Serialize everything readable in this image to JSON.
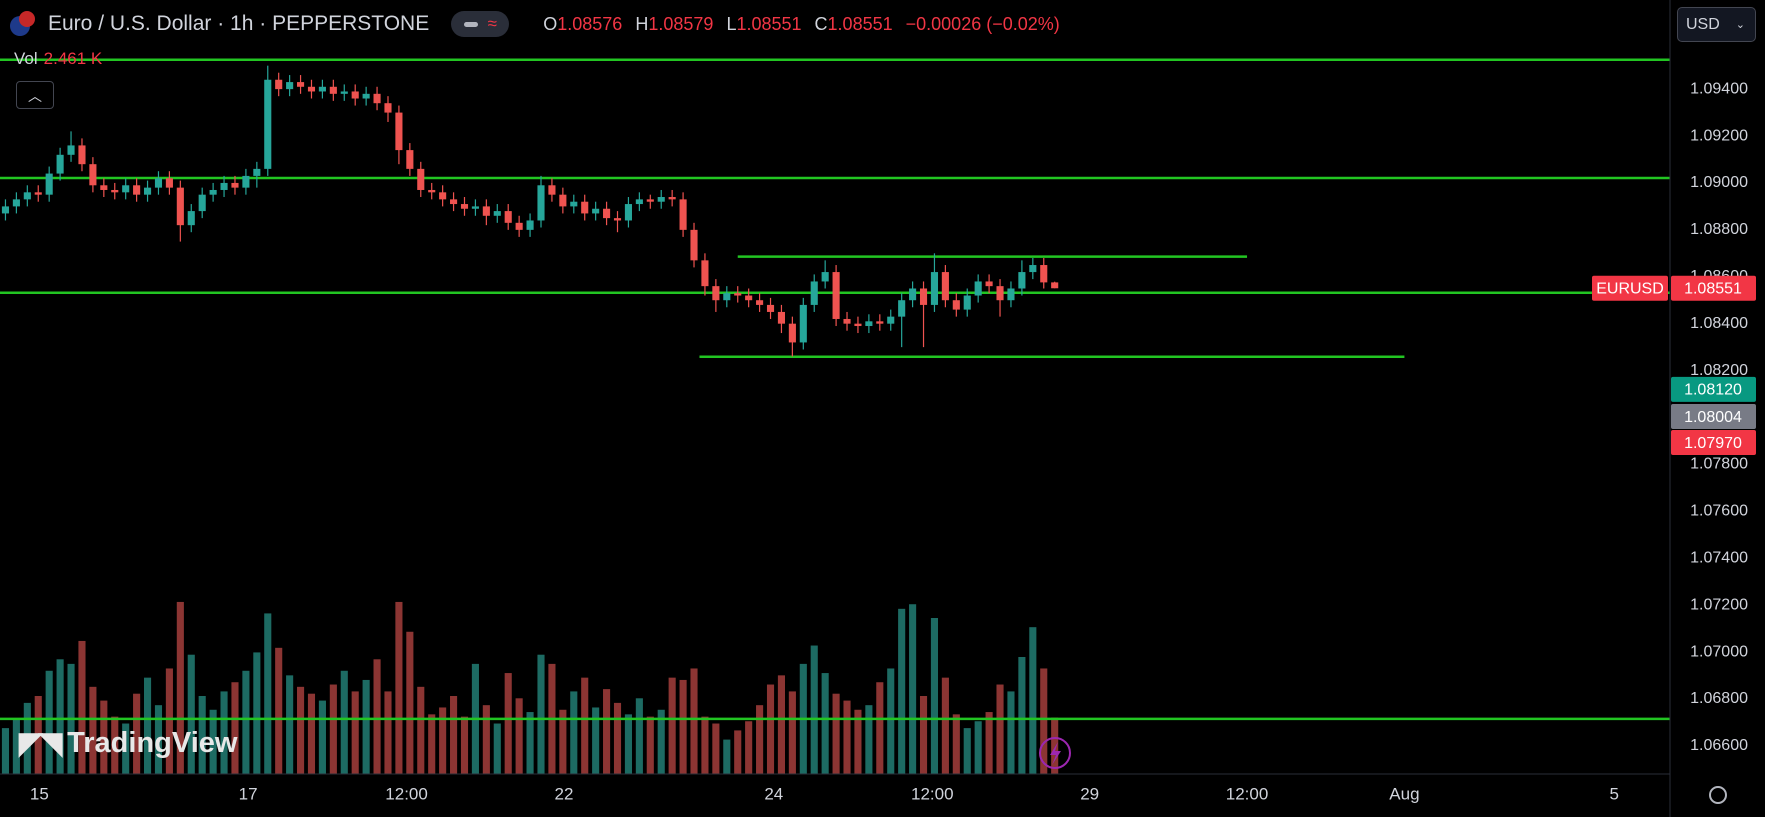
{
  "header": {
    "symbol": "Euro / U.S. Dollar · 1h · PEPPERSTONE",
    "o_label": "O",
    "open": "1.08576",
    "h_label": "H",
    "high": "1.08579",
    "l_label": "L",
    "low": "1.08551",
    "c_label": "C",
    "close": "1.08551",
    "change": "−0.00026 (−0.02%)",
    "vol_label": "Vol",
    "vol_value": "2.461 K",
    "currency": "USD",
    "logo": "TradingView"
  },
  "chart_data": {
    "type": "candlestick",
    "open": [
      1.0887,
      1.089,
      1.0893,
      1.0896,
      1.0895,
      1.0904,
      1.0912,
      1.0916,
      1.0908,
      1.0899,
      1.0897,
      1.0896,
      1.0899,
      1.0895,
      1.0898,
      1.0902,
      1.0898,
      1.0882,
      1.0888,
      1.0895,
      1.0897,
      1.09,
      1.0898,
      1.0903,
      1.0906,
      1.0944,
      1.094,
      1.0943,
      1.0941,
      1.0939,
      1.0941,
      1.0938,
      1.0939,
      1.0936,
      1.0938,
      1.0934,
      1.093,
      1.0914,
      1.0906,
      1.0897,
      1.0896,
      1.0893,
      1.0891,
      1.0889,
      1.089,
      1.0886,
      1.0888,
      1.0883,
      1.088,
      1.0884,
      1.0899,
      1.0895,
      1.089,
      1.0892,
      1.0887,
      1.0889,
      1.0885,
      1.0884,
      1.0891,
      1.0893,
      1.0892,
      1.0894,
      1.0893,
      1.088,
      1.0867,
      1.0856,
      1.085,
      1.0853,
      1.0852,
      1.085,
      1.0848,
      1.0845,
      1.084,
      1.0832,
      1.0848,
      1.0858,
      1.0862,
      1.0842,
      1.084,
      1.0839,
      1.0841,
      1.084,
      1.0843,
      1.085,
      1.0855,
      1.0848,
      1.0862,
      1.085,
      1.0846,
      1.0852,
      1.0858,
      1.0856,
      1.085,
      1.0855,
      1.0862,
      1.0865,
      1.08576
    ],
    "high": [
      1.0893,
      1.0896,
      1.0899,
      1.0899,
      1.0907,
      1.0915,
      1.0922,
      1.0919,
      1.0911,
      1.0902,
      1.09,
      1.0902,
      1.0902,
      1.0901,
      1.0905,
      1.0905,
      1.0901,
      1.0891,
      1.0898,
      1.09,
      1.0903,
      1.0903,
      1.0906,
      1.0909,
      1.095,
      1.0947,
      1.0946,
      1.0946,
      1.0944,
      1.0944,
      1.0944,
      1.0942,
      1.0942,
      1.0941,
      1.0941,
      1.0937,
      1.0933,
      1.0917,
      1.0909,
      1.09,
      1.0899,
      1.0896,
      1.0894,
      1.0893,
      1.0893,
      1.0891,
      1.0891,
      1.0886,
      1.0887,
      1.0903,
      1.0902,
      1.0898,
      1.0895,
      1.0895,
      1.0892,
      1.0892,
      1.0888,
      1.0894,
      1.0896,
      1.0895,
      1.0897,
      1.0897,
      1.0896,
      1.0883,
      1.087,
      1.0859,
      1.0856,
      1.0856,
      1.0855,
      1.0853,
      1.0851,
      1.0848,
      1.0843,
      1.0851,
      1.0861,
      1.0867,
      1.0865,
      1.0845,
      1.0843,
      1.0844,
      1.0844,
      1.0846,
      1.0853,
      1.0858,
      1.0858,
      1.087,
      1.0865,
      1.0853,
      1.0855,
      1.0861,
      1.0861,
      1.0859,
      1.0858,
      1.0867,
      1.0868,
      1.0868,
      1.08579
    ],
    "low": [
      1.0884,
      1.0887,
      1.089,
      1.0892,
      1.0892,
      1.0901,
      1.0909,
      1.0905,
      1.0896,
      1.0894,
      1.0893,
      1.0893,
      1.0892,
      1.0892,
      1.0895,
      1.0895,
      1.0875,
      1.0879,
      1.0885,
      1.0892,
      1.0894,
      1.0895,
      1.0895,
      1.0898,
      1.0903,
      1.0937,
      1.0937,
      1.0938,
      1.0936,
      1.0936,
      1.0935,
      1.0935,
      1.0933,
      1.0933,
      1.0931,
      1.0926,
      1.0908,
      1.0903,
      1.0894,
      1.0893,
      1.089,
      1.0888,
      1.0886,
      1.0886,
      1.0882,
      1.0883,
      1.088,
      1.0877,
      1.0877,
      1.0881,
      1.0892,
      1.0887,
      1.0887,
      1.0884,
      1.0884,
      1.0882,
      1.0879,
      1.0881,
      1.0888,
      1.0889,
      1.0889,
      1.089,
      1.0877,
      1.0864,
      1.0852,
      1.0845,
      1.0847,
      1.0849,
      1.0847,
      1.0845,
      1.0842,
      1.0836,
      1.0826,
      1.0829,
      1.0845,
      1.0855,
      1.0839,
      1.0837,
      1.0836,
      1.0836,
      1.0837,
      1.0837,
      1.083,
      1.0847,
      1.083,
      1.0845,
      1.0847,
      1.0843,
      1.0843,
      1.0849,
      1.0853,
      1.0843,
      1.0847,
      1.0852,
      1.0859,
      1.0855,
      1.08551
    ],
    "close": [
      1.089,
      1.0893,
      1.0896,
      1.0895,
      1.0904,
      1.0912,
      1.0916,
      1.0908,
      1.0899,
      1.0897,
      1.0896,
      1.0899,
      1.0895,
      1.0898,
      1.0902,
      1.0898,
      1.0882,
      1.0888,
      1.0895,
      1.0897,
      1.09,
      1.0898,
      1.0903,
      1.0906,
      1.0944,
      1.094,
      1.0943,
      1.0941,
      1.0939,
      1.0941,
      1.0938,
      1.0939,
      1.0936,
      1.0938,
      1.0934,
      1.093,
      1.0914,
      1.0906,
      1.0897,
      1.0896,
      1.0893,
      1.0891,
      1.0889,
      1.089,
      1.0886,
      1.0888,
      1.0883,
      1.088,
      1.0884,
      1.0899,
      1.0895,
      1.089,
      1.0892,
      1.0887,
      1.0889,
      1.0885,
      1.0884,
      1.0891,
      1.0893,
      1.0892,
      1.0894,
      1.0893,
      1.088,
      1.0867,
      1.0856,
      1.085,
      1.0853,
      1.0852,
      1.085,
      1.0848,
      1.0845,
      1.084,
      1.0832,
      1.0848,
      1.0858,
      1.0862,
      1.0842,
      1.084,
      1.0839,
      1.0841,
      1.084,
      1.0843,
      1.085,
      1.0855,
      1.0848,
      1.0862,
      1.085,
      1.0846,
      1.0852,
      1.0858,
      1.0856,
      1.085,
      1.0855,
      1.0862,
      1.0865,
      1.08576,
      1.08551
    ],
    "volume": [
      2.0,
      2.4,
      3.1,
      3.4,
      4.5,
      5.0,
      4.8,
      5.8,
      3.8,
      3.2,
      2.5,
      2.2,
      3.5,
      4.2,
      3.0,
      4.6,
      7.5,
      5.2,
      3.4,
      2.8,
      3.6,
      4.0,
      4.5,
      5.3,
      7.0,
      5.5,
      4.3,
      3.8,
      3.5,
      3.2,
      3.9,
      4.5,
      3.6,
      4.1,
      5.0,
      3.6,
      7.5,
      6.2,
      3.8,
      2.6,
      2.9,
      3.4,
      2.5,
      4.8,
      3.0,
      2.2,
      4.4,
      3.3,
      2.7,
      5.2,
      4.8,
      2.8,
      3.6,
      4.2,
      2.9,
      3.7,
      3.1,
      2.6,
      3.3,
      2.5,
      2.8,
      4.2,
      4.1,
      4.6,
      2.5,
      2.2,
      1.5,
      1.9,
      2.3,
      3.0,
      3.9,
      4.3,
      3.6,
      4.8,
      5.6,
      4.4,
      3.5,
      3.2,
      2.8,
      3.0,
      4.0,
      4.6,
      7.2,
      7.4,
      3.4,
      6.8,
      4.2,
      2.6,
      2.0,
      2.3,
      2.7,
      3.9,
      3.6,
      5.1,
      6.4,
      4.6,
      2.461
    ],
    "up_color": "#26a69a",
    "down_color": "#ef5350",
    "volume_up_color": "#1d6b63",
    "volume_down_color": "#8c3533",
    "volume_lim": [
      0,
      8.5
    ],
    "ylim": [
      1.0648,
      1.0978
    ],
    "yticks": [
      {
        "value": 1.094,
        "label": "1.09400"
      },
      {
        "value": 1.092,
        "label": "1.09200"
      },
      {
        "value": 1.09,
        "label": "1.09000"
      },
      {
        "value": 1.088,
        "label": "1.08800"
      },
      {
        "value": 1.086,
        "label": "1.08600"
      },
      {
        "value": 1.084,
        "label": "1.08400"
      },
      {
        "value": 1.082,
        "label": "1.08200"
      },
      {
        "value": 1.08,
        "label": "1.08000"
      },
      {
        "value": 1.078,
        "label": "1.07800"
      },
      {
        "value": 1.076,
        "label": "1.07600"
      },
      {
        "value": 1.074,
        "label": "1.07400"
      },
      {
        "value": 1.072,
        "label": "1.07200"
      },
      {
        "value": 1.07,
        "label": "1.07000"
      },
      {
        "value": 1.068,
        "label": "1.06800"
      },
      {
        "value": 1.066,
        "label": "1.06600"
      }
    ],
    "xlim": [
      -0.5,
      152.3
    ],
    "xticks": [
      {
        "value": 3.1,
        "label": "15"
      },
      {
        "value": 22.2,
        "label": "17"
      },
      {
        "value": 36.7,
        "label": "12:00"
      },
      {
        "value": 51.1,
        "label": "22"
      },
      {
        "value": 70.3,
        "label": "24"
      },
      {
        "value": 84.8,
        "label": "12:00"
      },
      {
        "value": 99.2,
        "label": "29"
      },
      {
        "value": 113.6,
        "label": "12:00"
      },
      {
        "value": 128.0,
        "label": "Aug"
      },
      {
        "value": 147.2,
        "label": "5"
      }
    ],
    "grid": false,
    "hline_color": "#22c522",
    "hlines": [
      {
        "value": 1.09525
      },
      {
        "value": 1.09021
      },
      {
        "value": 1.08686,
        "x": [
          67,
          113.6
        ]
      },
      {
        "value": 1.08532
      },
      {
        "value": 1.08259,
        "x": [
          63.5,
          128
        ]
      },
      {
        "value": 1.06715
      }
    ],
    "price_labels": [
      {
        "name": "EURUSD",
        "value": 1.08551,
        "label": "1.08551",
        "color": "#f23645"
      },
      {
        "value": 1.0812,
        "label": "1.08120",
        "color": "#089981"
      },
      {
        "value": 1.08004,
        "label": "1.08004",
        "color": "#787b86"
      },
      {
        "value": 1.0797,
        "label": "1.07970",
        "color": "#f23645"
      }
    ]
  }
}
